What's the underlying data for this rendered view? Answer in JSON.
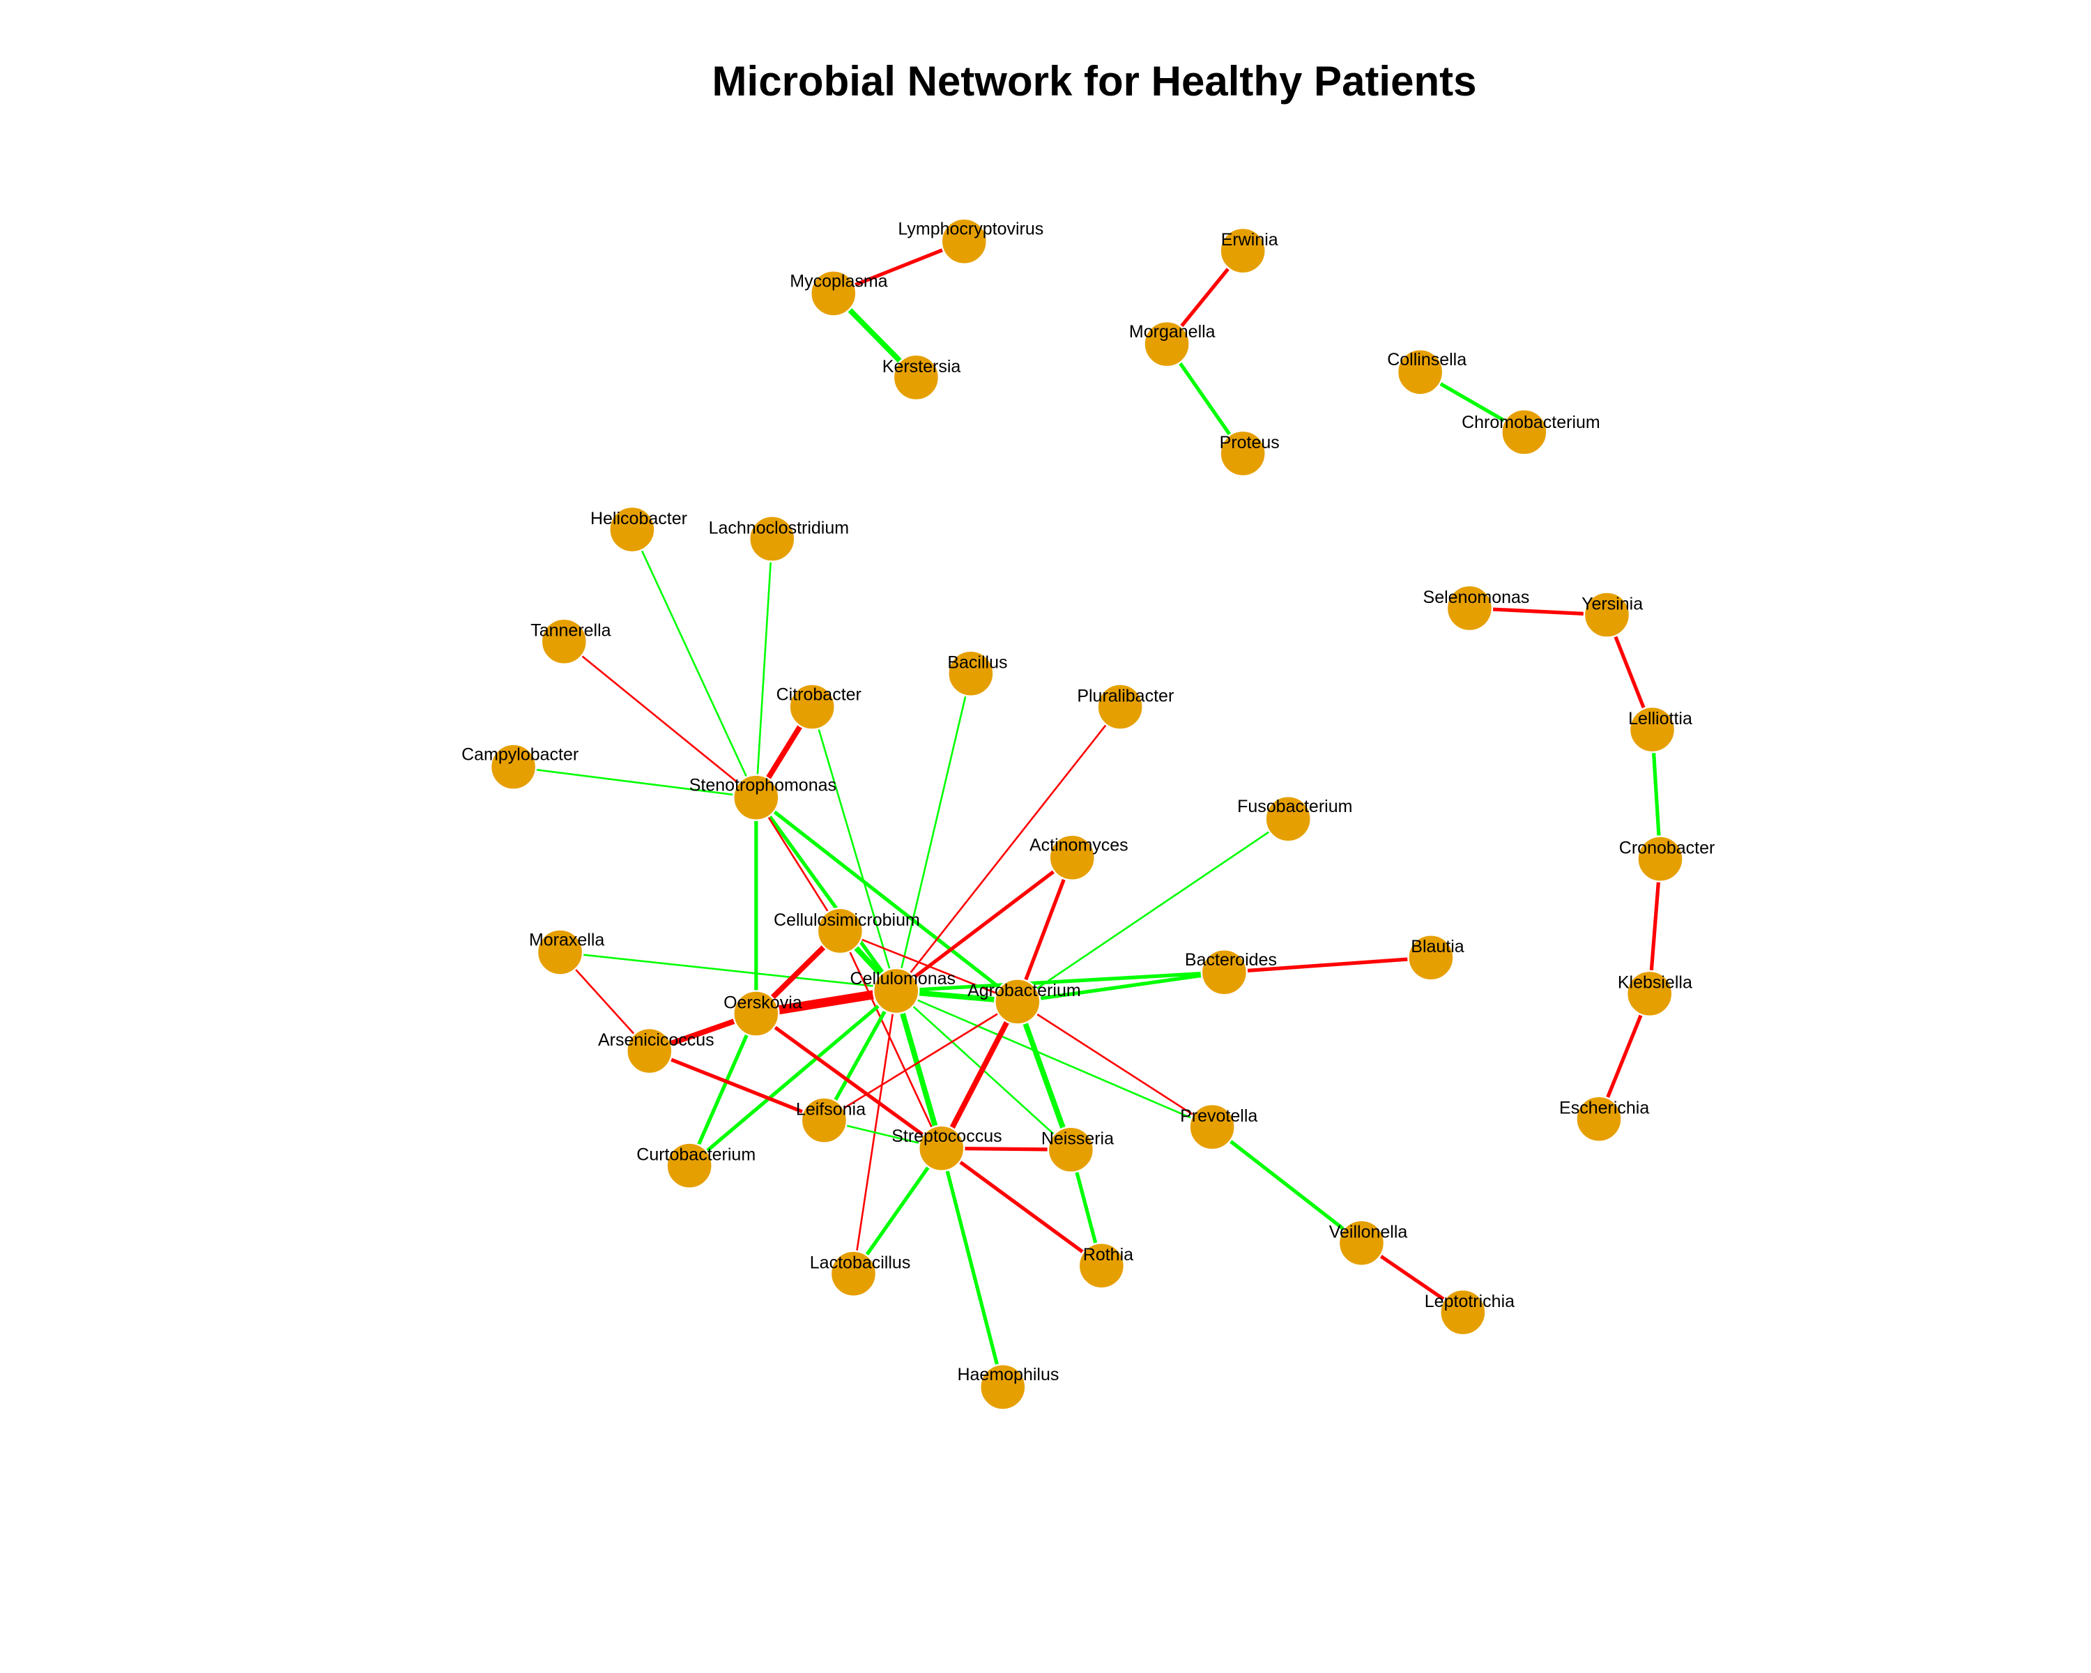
{
  "title": "Microbial Network for Healthy Patients",
  "colors": {
    "positive_edge": "#00ff00",
    "negative_edge": "#ff0000",
    "node_fill": "#e69f00",
    "node_stroke": "#ffffff",
    "background": "#ffffff"
  },
  "nodes": [
    "Lymphocryptovirus",
    "Mycoplasma",
    "Kerstersia",
    "Erwinia",
    "Morganella",
    "Proteus",
    "Collinsella",
    "Chromobacterium",
    "Selenomonas",
    "Yersinia",
    "Lelliottia",
    "Cronobacter",
    "Klebsiella",
    "Escherichia",
    "Helicobacter",
    "Lachnoclostridium",
    "Tannerella",
    "Citrobacter",
    "Bacillus",
    "Pluralibacter",
    "Campylobacter",
    "Stenotrophomonas",
    "Fusobacterium",
    "Actinomyces",
    "Moraxella",
    "Cellulosimicrobium",
    "Cellulomonas",
    "Agrobacterium",
    "Bacteroides",
    "Blautia",
    "Oerskovia",
    "Arsenicicoccus",
    "Leifsonia",
    "Streptococcus",
    "Neisseria",
    "Prevotella",
    "Curtobacterium",
    "Lactobacillus",
    "Rothia",
    "Veillonella",
    "Leptotrichia",
    "Haemophilus"
  ],
  "edges": [
    {
      "source": "Mycoplasma",
      "target": "Lymphocryptovirus",
      "sign": "negative",
      "weight": 2
    },
    {
      "source": "Mycoplasma",
      "target": "Kerstersia",
      "sign": "positive",
      "weight": 3
    },
    {
      "source": "Morganella",
      "target": "Erwinia",
      "sign": "negative",
      "weight": 2
    },
    {
      "source": "Morganella",
      "target": "Proteus",
      "sign": "positive",
      "weight": 2
    },
    {
      "source": "Collinsella",
      "target": "Chromobacterium",
      "sign": "positive",
      "weight": 2
    },
    {
      "source": "Selenomonas",
      "target": "Yersinia",
      "sign": "negative",
      "weight": 2
    },
    {
      "source": "Yersinia",
      "target": "Lelliottia",
      "sign": "negative",
      "weight": 2
    },
    {
      "source": "Lelliottia",
      "target": "Cronobacter",
      "sign": "positive",
      "weight": 2
    },
    {
      "source": "Cronobacter",
      "target": "Klebsiella",
      "sign": "negative",
      "weight": 2
    },
    {
      "source": "Klebsiella",
      "target": "Escherichia",
      "sign": "negative",
      "weight": 2
    },
    {
      "source": "Helicobacter",
      "target": "Stenotrophomonas",
      "sign": "positive",
      "weight": 1
    },
    {
      "source": "Lachnoclostridium",
      "target": "Stenotrophomonas",
      "sign": "positive",
      "weight": 1
    },
    {
      "source": "Tannerella",
      "target": "Stenotrophomonas",
      "sign": "negative",
      "weight": 1
    },
    {
      "source": "Campylobacter",
      "target": "Stenotrophomonas",
      "sign": "positive",
      "weight": 1
    },
    {
      "source": "Citrobacter",
      "target": "Stenotrophomonas",
      "sign": "negative",
      "weight": 3
    },
    {
      "source": "Stenotrophomonas",
      "target": "Oerskovia",
      "sign": "positive",
      "weight": 2
    },
    {
      "source": "Stenotrophomonas",
      "target": "Cellulomonas",
      "sign": "positive",
      "weight": 2
    },
    {
      "source": "Stenotrophomonas",
      "target": "Agrobacterium",
      "sign": "positive",
      "weight": 2
    },
    {
      "source": "Stenotrophomonas",
      "target": "Cellulosimicrobium",
      "sign": "negative",
      "weight": 1
    },
    {
      "source": "Citrobacter",
      "target": "Cellulomonas",
      "sign": "positive",
      "weight": 1
    },
    {
      "source": "Bacillus",
      "target": "Cellulomonas",
      "sign": "positive",
      "weight": 1
    },
    {
      "source": "Pluralibacter",
      "target": "Cellulomonas",
      "sign": "negative",
      "weight": 1
    },
    {
      "source": "Actinomyces",
      "target": "Cellulomonas",
      "sign": "negative",
      "weight": 2
    },
    {
      "source": "Actinomyces",
      "target": "Agrobacterium",
      "sign": "negative",
      "weight": 2
    },
    {
      "source": "Fusobacterium",
      "target": "Agrobacterium",
      "sign": "positive",
      "weight": 1
    },
    {
      "source": "Moraxella",
      "target": "Agrobacterium",
      "sign": "positive",
      "weight": 1
    },
    {
      "source": "Moraxella",
      "target": "Arsenicicoccus",
      "sign": "negative",
      "weight": 1
    },
    {
      "source": "Cellulosimicrobium",
      "target": "Cellulomonas",
      "sign": "positive",
      "weight": 3
    },
    {
      "source": "Cellulosimicrobium",
      "target": "Agrobacterium",
      "sign": "negative",
      "weight": 1
    },
    {
      "source": "Cellulosimicrobium",
      "target": "Oerskovia",
      "sign": "negative",
      "weight": 3
    },
    {
      "source": "Cellulosimicrobium",
      "target": "Streptococcus",
      "sign": "negative",
      "weight": 1
    },
    {
      "source": "Cellulomonas",
      "target": "Agrobacterium",
      "sign": "positive",
      "weight": 3
    },
    {
      "source": "Cellulomonas",
      "target": "Oerskovia",
      "sign": "negative",
      "weight": 5
    },
    {
      "source": "Cellulomonas",
      "target": "Bacteroides",
      "sign": "positive",
      "weight": 2
    },
    {
      "source": "Cellulomonas",
      "target": "Streptococcus",
      "sign": "positive",
      "weight": 3
    },
    {
      "source": "Cellulomonas",
      "target": "Neisseria",
      "sign": "positive",
      "weight": 1
    },
    {
      "source": "Cellulomonas",
      "target": "Prevotella",
      "sign": "positive",
      "weight": 1
    },
    {
      "source": "Cellulomonas",
      "target": "Leifsonia",
      "sign": "positive",
      "weight": 2
    },
    {
      "source": "Cellulomonas",
      "target": "Curtobacterium",
      "sign": "positive",
      "weight": 2
    },
    {
      "source": "Cellulomonas",
      "target": "Lactobacillus",
      "sign": "negative",
      "weight": 1
    },
    {
      "source": "Agrobacterium",
      "target": "Bacteroides",
      "sign": "positive",
      "weight": 2
    },
    {
      "source": "Agrobacterium",
      "target": "Streptococcus",
      "sign": "negative",
      "weight": 3
    },
    {
      "source": "Agrobacterium",
      "target": "Neisseria",
      "sign": "positive",
      "weight": 3
    },
    {
      "source": "Agrobacterium",
      "target": "Prevotella",
      "sign": "negative",
      "weight": 1
    },
    {
      "source": "Agrobacterium",
      "target": "Leifsonia",
      "sign": "negative",
      "weight": 1
    },
    {
      "source": "Bacteroides",
      "target": "Blautia",
      "sign": "negative",
      "weight": 2
    },
    {
      "source": "Oerskovia",
      "target": "Arsenicicoccus",
      "sign": "negative",
      "weight": 3
    },
    {
      "source": "Oerskovia",
      "target": "Streptococcus",
      "sign": "negative",
      "weight": 2
    },
    {
      "source": "Oerskovia",
      "target": "Curtobacterium",
      "sign": "positive",
      "weight": 2
    },
    {
      "source": "Arsenicicoccus",
      "target": "Leifsonia",
      "sign": "negative",
      "weight": 2
    },
    {
      "source": "Leifsonia",
      "target": "Streptococcus",
      "sign": "positive",
      "weight": 1
    },
    {
      "source": "Streptococcus",
      "target": "Neisseria",
      "sign": "negative",
      "weight": 2
    },
    {
      "source": "Streptococcus",
      "target": "Rothia",
      "sign": "negative",
      "weight": 2
    },
    {
      "source": "Streptococcus",
      "target": "Lactobacillus",
      "sign": "positive",
      "weight": 2
    },
    {
      "source": "Streptococcus",
      "target": "Haemophilus",
      "sign": "positive",
      "weight": 2
    },
    {
      "source": "Neisseria",
      "target": "Rothia",
      "sign": "positive",
      "weight": 2
    },
    {
      "source": "Prevotella",
      "target": "Veillonella",
      "sign": "positive",
      "weight": 2
    },
    {
      "source": "Veillonella",
      "target": "Leptotrichia",
      "sign": "negative",
      "weight": 2
    }
  ]
}
